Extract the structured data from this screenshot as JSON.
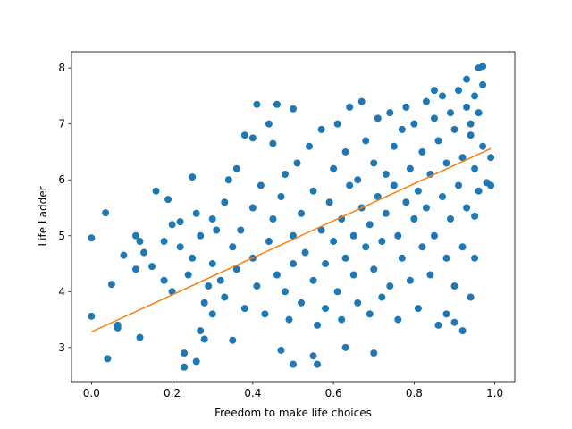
{
  "chart_data": {
    "type": "scatter",
    "xlabel": "Freedom to make life choices",
    "ylabel": "Life Ladder",
    "color": "#1f77b4",
    "x": [
      0.0,
      0.0,
      0.035,
      0.04,
      0.05,
      0.065,
      0.065,
      0.08,
      0.11,
      0.11,
      0.12,
      0.12,
      0.13,
      0.15,
      0.16,
      0.18,
      0.19,
      0.2,
      0.22,
      0.23,
      0.23,
      0.25,
      0.26,
      0.27,
      0.28,
      0.3,
      0.3,
      0.33,
      0.34,
      0.35,
      0.36,
      0.38,
      0.4,
      0.41,
      0.44,
      0.45,
      0.46,
      0.5,
      0.47,
      0.5,
      0.55,
      0.56,
      0.63,
      0.7,
      0.96,
      0.97,
      0.93,
      0.85,
      0.99,
      0.99,
      0.98,
      0.95,
      0.95,
      0.94,
      0.9,
      0.88,
      0.92,
      0.3,
      0.32,
      0.33,
      0.35,
      0.36,
      0.37,
      0.38,
      0.4,
      0.4,
      0.41,
      0.42,
      0.43,
      0.44,
      0.45,
      0.46,
      0.47,
      0.48,
      0.48,
      0.49,
      0.5,
      0.5,
      0.51,
      0.52,
      0.52,
      0.53,
      0.54,
      0.55,
      0.55,
      0.56,
      0.57,
      0.57,
      0.58,
      0.58,
      0.59,
      0.6,
      0.6,
      0.61,
      0.61,
      0.62,
      0.62,
      0.63,
      0.63,
      0.64,
      0.64,
      0.65,
      0.65,
      0.66,
      0.66,
      0.67,
      0.67,
      0.68,
      0.68,
      0.69,
      0.69,
      0.7,
      0.7,
      0.71,
      0.71,
      0.72,
      0.72,
      0.73,
      0.73,
      0.74,
      0.74,
      0.75,
      0.75,
      0.76,
      0.76,
      0.77,
      0.77,
      0.78,
      0.78,
      0.79,
      0.79,
      0.8,
      0.8,
      0.81,
      0.81,
      0.82,
      0.82,
      0.83,
      0.83,
      0.84,
      0.84,
      0.85,
      0.85,
      0.86,
      0.86,
      0.87,
      0.87,
      0.88,
      0.88,
      0.89,
      0.89,
      0.9,
      0.9,
      0.91,
      0.91,
      0.92,
      0.92,
      0.93,
      0.93,
      0.94,
      0.94,
      0.95,
      0.95,
      0.96,
      0.96,
      0.97,
      0.97,
      0.25,
      0.27,
      0.28,
      0.22,
      0.2,
      0.18,
      0.24,
      0.26,
      0.29,
      0.31
    ],
    "values": [
      4.96,
      3.56,
      5.41,
      2.8,
      4.13,
      3.4,
      3.35,
      4.65,
      5.0,
      4.4,
      4.9,
      3.18,
      4.7,
      4.45,
      5.8,
      4.2,
      5.65,
      4.0,
      5.25,
      2.9,
      2.65,
      6.05,
      2.75,
      3.3,
      3.15,
      5.3,
      3.6,
      5.6,
      6.0,
      3.13,
      6.2,
      6.8,
      6.75,
      7.35,
      7.0,
      6.65,
      7.35,
      7.27,
      2.95,
      2.7,
      2.85,
      2.7,
      3.0,
      2.9,
      8.0,
      8.03,
      7.8,
      7.6,
      6.4,
      5.9,
      5.95,
      5.35,
      4.6,
      3.9,
      3.45,
      3.6,
      3.3,
      4.5,
      4.2,
      3.9,
      4.8,
      4.4,
      5.1,
      3.7,
      4.6,
      5.5,
      4.1,
      5.9,
      3.6,
      4.9,
      5.3,
      4.3,
      5.7,
      4.0,
      6.1,
      3.5,
      5.0,
      4.5,
      6.3,
      3.8,
      5.4,
      4.7,
      6.6,
      4.2,
      5.8,
      3.4,
      5.1,
      6.9,
      4.5,
      3.7,
      5.6,
      4.9,
      6.2,
      7.0,
      4.0,
      5.3,
      3.5,
      6.5,
      4.6,
      5.9,
      7.3,
      4.3,
      5.0,
      3.8,
      6.0,
      7.4,
      5.5,
      4.8,
      6.7,
      3.6,
      5.2,
      6.3,
      4.4,
      7.1,
      5.7,
      3.9,
      4.9,
      6.1,
      5.4,
      7.2,
      4.1,
      5.9,
      6.6,
      3.5,
      5.0,
      6.9,
      4.6,
      5.6,
      7.3,
      4.2,
      6.2,
      5.3,
      7.0,
      3.7,
      5.8,
      6.5,
      4.8,
      7.4,
      5.5,
      4.3,
      6.1,
      7.1,
      5.0,
      6.7,
      3.4,
      5.7,
      7.5,
      4.6,
      6.3,
      7.2,
      5.3,
      6.9,
      4.1,
      7.6,
      5.9,
      6.4,
      4.8,
      7.3,
      5.5,
      6.8,
      7.0,
      7.5,
      6.2,
      7.2,
      5.8,
      7.7,
      6.6,
      4.6,
      5.0,
      3.8,
      4.8,
      5.2,
      4.9,
      4.3,
      5.4,
      4.1,
      5.1
    ],
    "fit": {
      "x": [
        0.0,
        0.99
      ],
      "values": [
        3.28,
        6.56
      ],
      "color": "#ff7f0e"
    },
    "xlim": [
      -0.0495,
      1.0495
    ],
    "ylim": [
      2.39,
      8.29
    ],
    "xticks": [
      {
        "value": 0,
        "label": "0.0"
      },
      0.2,
      0.4,
      0.6,
      0.8,
      {
        "value": 1,
        "label": "1.0"
      }
    ],
    "yticks": [
      3,
      4,
      5,
      6,
      7,
      8
    ]
  }
}
